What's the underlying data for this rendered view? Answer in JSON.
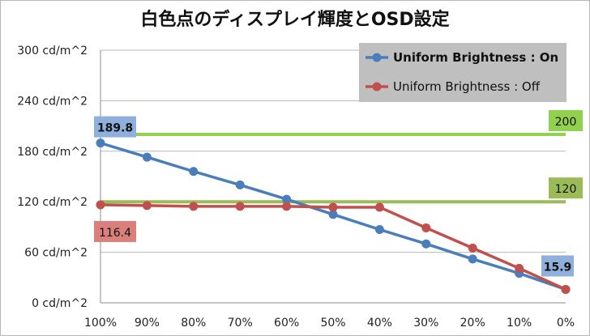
{
  "chart_data": {
    "type": "line",
    "title": "白色点のディスプレイ輝度とOSD設定",
    "categories": [
      "100%",
      "90%",
      "80%",
      "70%",
      "60%",
      "50%",
      "40%",
      "30%",
      "20%",
      "10%",
      "0%"
    ],
    "y_ticks": [
      "0 cd/m^2",
      "60 cd/m^2",
      "120 cd/m^2",
      "180 cd/m^2",
      "240 cd/m^2",
      "300 cd/m^2"
    ],
    "ylim": [
      0,
      300
    ],
    "grid": "horizontal",
    "legend_position": "top-right",
    "series": [
      {
        "name": "Uniform Brightness : On",
        "color": "#4a7ebb",
        "values": [
          189.8,
          173,
          156,
          140,
          123,
          105,
          87,
          70,
          52,
          35,
          15.9
        ]
      },
      {
        "name": "Uniform Brightness : Off",
        "color": "#c0504d",
        "values": [
          116.4,
          115.5,
          114.5,
          114.5,
          114.5,
          113.5,
          113.5,
          89,
          65,
          41,
          15.9
        ]
      }
    ],
    "reference_lines": [
      {
        "label": "200",
        "value": 200,
        "color": "#92d050"
      },
      {
        "label": "120",
        "value": 120,
        "color": "#9bbb59"
      }
    ],
    "data_labels": [
      {
        "text": "189.8",
        "series": 0,
        "index": 0,
        "bg": "#8fb0dc",
        "fg": "#111111"
      },
      {
        "text": "116.4",
        "series": 1,
        "index": 0,
        "bg": "#d9807d",
        "fg": "#111111"
      },
      {
        "text": "15.9",
        "series": 0,
        "index": 10,
        "bg": "#8fb0dc",
        "fg": "#111111"
      }
    ]
  }
}
